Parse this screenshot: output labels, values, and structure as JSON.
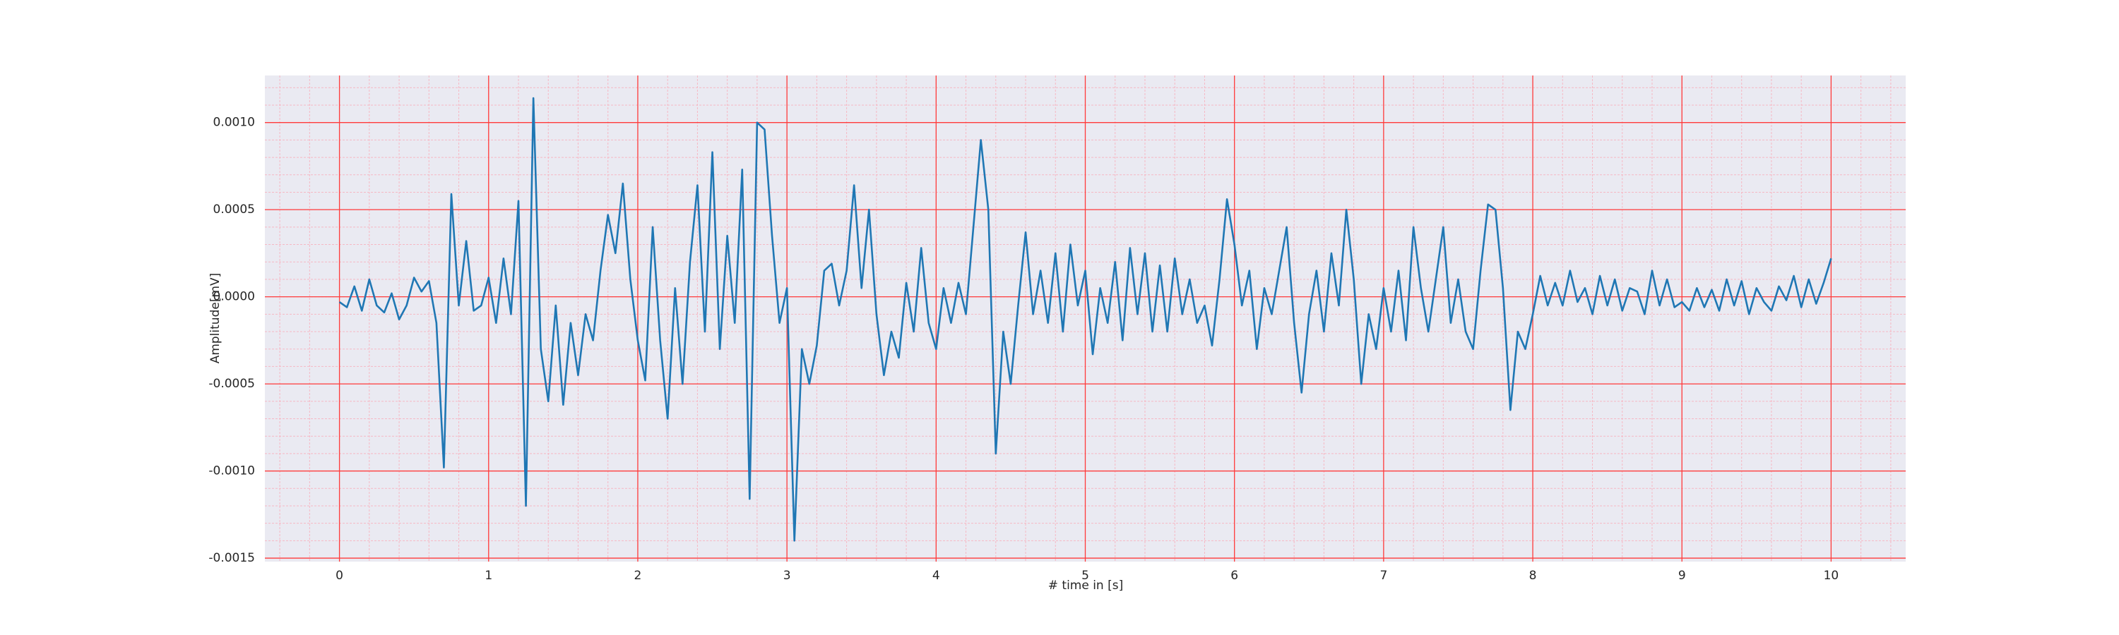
{
  "chart_data": {
    "type": "line",
    "xlabel": "# time in [s]",
    "ylabel": "Amplitude[mV]",
    "xlim": [
      -0.5,
      10.5
    ],
    "ylim": [
      -0.00152,
      0.00127
    ],
    "xticks": [
      0,
      1,
      2,
      3,
      4,
      5,
      6,
      7,
      8,
      9,
      10
    ],
    "yticks": [
      -0.0015,
      {
        "value": -0.001,
        "label": "-0.0010"
      },
      -0.0005,
      {
        "value": 0,
        "label": "0.0000"
      },
      0.0005,
      {
        "value": 0.001,
        "label": "0.0010"
      }
    ],
    "grid": true,
    "minor_grid": true,
    "grid_color": "#ff3b3b",
    "minor_grid_color": "#f6b8c4",
    "background": "#eaeaf2",
    "x": [
      0,
      0.05,
      0.1,
      0.15,
      0.2,
      0.25,
      0.3,
      0.35,
      0.4,
      0.45,
      0.5,
      0.55,
      0.6,
      0.65,
      0.7,
      0.75,
      0.8,
      0.85,
      0.9,
      0.95,
      1,
      1.05,
      1.1,
      1.15,
      1.2,
      1.25,
      1.3,
      1.35,
      1.4,
      1.45,
      1.5,
      1.55,
      1.6,
      1.65,
      1.7,
      1.75,
      1.8,
      1.85,
      1.9,
      1.95,
      2,
      2.05,
      2.1,
      2.15,
      2.2,
      2.25,
      2.3,
      2.35,
      2.4,
      2.45,
      2.5,
      2.55,
      2.6,
      2.65,
      2.7,
      2.75,
      2.8,
      2.85,
      2.9,
      2.95,
      3,
      3.05,
      3.1,
      3.15,
      3.2,
      3.25,
      3.3,
      3.35,
      3.4,
      3.45,
      3.5,
      3.55,
      3.6,
      3.65,
      3.7,
      3.75,
      3.8,
      3.85,
      3.9,
      3.95,
      4,
      4.05,
      4.1,
      4.15,
      4.2,
      4.25,
      4.3,
      4.35,
      4.4,
      4.45,
      4.5,
      4.55,
      4.6,
      4.65,
      4.7,
      4.75,
      4.8,
      4.85,
      4.9,
      4.95,
      5,
      5.05,
      5.1,
      5.15,
      5.2,
      5.25,
      5.3,
      5.35,
      5.4,
      5.45,
      5.5,
      5.55,
      5.6,
      5.65,
      5.7,
      5.75,
      5.8,
      5.85,
      5.9,
      5.95,
      6,
      6.05,
      6.1,
      6.15,
      6.2,
      6.25,
      6.3,
      6.35,
      6.4,
      6.45,
      6.5,
      6.55,
      6.6,
      6.65,
      6.7,
      6.75,
      6.8,
      6.85,
      6.9,
      6.95,
      7,
      7.05,
      7.1,
      7.15,
      7.2,
      7.25,
      7.3,
      7.35,
      7.4,
      7.45,
      7.5,
      7.55,
      7.6,
      7.65,
      7.7,
      7.75,
      7.8,
      7.85,
      7.9,
      7.95,
      8,
      8.05,
      8.1,
      8.15,
      8.2,
      8.25,
      8.3,
      8.35,
      8.4,
      8.45,
      8.5,
      8.55,
      8.6,
      8.65,
      8.7,
      8.75,
      8.8,
      8.85,
      8.9,
      8.95,
      9,
      9.05,
      9.1,
      9.15,
      9.2,
      9.25,
      9.3,
      9.35,
      9.4,
      9.45,
      9.5,
      9.55,
      9.6,
      9.65,
      9.7,
      9.75,
      9.8,
      9.85,
      9.9,
      9.95,
      10
    ],
    "series": [
      {
        "color": "#1f77b4",
        "values": [
          -3e-05,
          -6e-05,
          6e-05,
          -8e-05,
          0.0001,
          -5e-05,
          -9e-05,
          2e-05,
          -0.00013,
          -5e-05,
          0.00011,
          3e-05,
          9e-05,
          -0.00015,
          -0.00098,
          0.00059,
          -5e-05,
          0.00032,
          -8e-05,
          -5e-05,
          0.00011,
          -0.00015,
          0.00022,
          -0.0001,
          0.00055,
          -0.0012,
          0.00114,
          -0.0003,
          -0.0006,
          -5e-05,
          -0.00062,
          -0.00015,
          -0.00045,
          -0.0001,
          -0.00025,
          0.00015,
          0.00047,
          0.00025,
          0.00065,
          0.0001,
          -0.00025,
          -0.00048,
          0.0004,
          -0.00025,
          -0.0007,
          5e-05,
          -0.0005,
          0.0002,
          0.00064,
          -0.0002,
          0.00083,
          -0.0003,
          0.00035,
          -0.00015,
          0.00073,
          -0.00116,
          0.001,
          0.00096,
          0.00035,
          -0.00015,
          5e-05,
          -0.0014,
          -0.0003,
          -0.0005,
          -0.00028,
          0.00015,
          0.00019,
          -5e-05,
          0.00015,
          0.00064,
          5e-05,
          0.0005,
          -0.0001,
          -0.00045,
          -0.0002,
          -0.00035,
          8e-05,
          -0.0002,
          0.00028,
          -0.00015,
          -0.0003,
          5e-05,
          -0.00015,
          8e-05,
          -0.0001,
          0.0004,
          0.0009,
          0.0005,
          -0.0009,
          -0.0002,
          -0.0005,
          -5e-05,
          0.00037,
          -0.0001,
          0.00015,
          -0.00015,
          0.00025,
          -0.0002,
          0.0003,
          -5e-05,
          0.00015,
          -0.00033,
          5e-05,
          -0.00015,
          0.0002,
          -0.00025,
          0.00028,
          -0.0001,
          0.00025,
          -0.0002,
          0.00018,
          -0.0002,
          0.00022,
          -0.0001,
          0.0001,
          -0.00015,
          -5e-05,
          -0.00028,
          0.0001,
          0.00056,
          0.0003,
          -5e-05,
          0.00015,
          -0.0003,
          5e-05,
          -0.0001,
          0.00015,
          0.0004,
          -0.00015,
          -0.00055,
          -0.0001,
          0.00015,
          -0.0002,
          0.00025,
          -5e-05,
          0.0005,
          0.0001,
          -0.0005,
          -0.0001,
          -0.0003,
          5e-05,
          -0.0002,
          0.00015,
          -0.00025,
          0.0004,
          5e-05,
          -0.0002,
          0.0001,
          0.0004,
          -0.00015,
          0.0001,
          -0.0002,
          -0.0003,
          0.00015,
          0.00053,
          0.0005,
          5e-05,
          -0.00065,
          -0.0002,
          -0.0003,
          -0.0001,
          0.00012,
          -5e-05,
          8e-05,
          -5e-05,
          0.00015,
          -3e-05,
          5e-05,
          -0.0001,
          0.00012,
          -5e-05,
          0.0001,
          -8e-05,
          5e-05,
          3e-05,
          -0.0001,
          0.00015,
          -5e-05,
          0.0001,
          -6e-05,
          -3e-05,
          -8e-05,
          5e-05,
          -6e-05,
          4e-05,
          -8e-05,
          0.0001,
          -5e-05,
          9e-05,
          -0.0001,
          5e-05,
          -3e-05,
          -8e-05,
          6e-05,
          -2e-05,
          0.00012,
          -6e-05,
          0.0001,
          -4e-05,
          8e-05,
          0.00022
        ]
      }
    ]
  }
}
